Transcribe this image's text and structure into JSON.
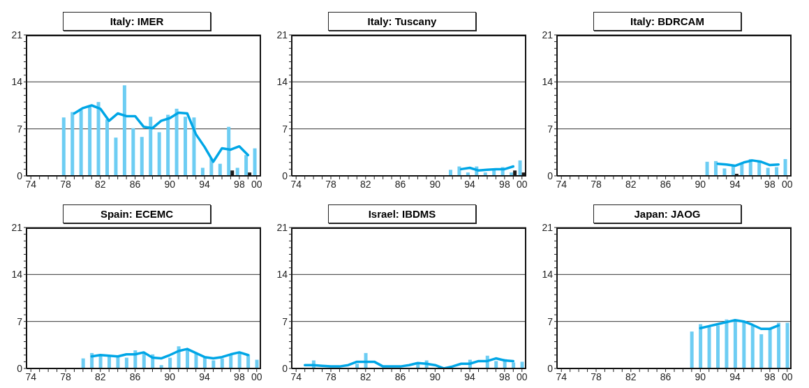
{
  "chart_data": [
    {
      "type": "bar",
      "title": "Italy: IMER",
      "categories": [
        "74",
        null,
        null,
        null,
        "78",
        null,
        null,
        null,
        "82",
        null,
        null,
        null,
        "86",
        null,
        null,
        null,
        "90",
        null,
        null,
        null,
        "94",
        null,
        null,
        null,
        "98",
        null,
        "00"
      ],
      "ylim": [
        0,
        21
      ],
      "yticks": [
        0,
        {
          "value": 1,
          "label": null
        },
        {
          "value": 2,
          "label": null
        },
        {
          "value": 3,
          "label": null
        },
        {
          "value": 4,
          "label": null
        },
        {
          "value": 5,
          "label": null
        },
        {
          "value": 6,
          "label": null
        },
        7,
        {
          "value": 8,
          "label": null
        },
        {
          "value": 9,
          "label": null
        },
        {
          "value": 10,
          "label": null
        },
        {
          "value": 11,
          "label": null
        },
        {
          "value": 12,
          "label": null
        },
        {
          "value": 13,
          "label": null
        },
        14,
        {
          "value": 15,
          "label": null
        },
        {
          "value": 16,
          "label": null
        },
        {
          "value": 17,
          "label": null
        },
        {
          "value": 18,
          "label": null
        },
        {
          "value": 19,
          "label": null
        },
        {
          "value": 20,
          "label": null
        },
        21
      ],
      "grid": "y",
      "series": [
        {
          "color": "#6dcdf3",
          "values": [
            null,
            null,
            null,
            null,
            8.7,
            9.5,
            9.8,
            10.3,
            11.0,
            8.4,
            5.7,
            13.5,
            7.1,
            5.8,
            8.8,
            6.5,
            9.1,
            10.0,
            8.8,
            8.7,
            1.2,
            2.6,
            1.8,
            7.3,
            1.2,
            3.1,
            4.1
          ]
        },
        {
          "color": "#1a1a1a",
          "values": [
            null,
            null,
            null,
            null,
            null,
            null,
            null,
            null,
            null,
            null,
            null,
            null,
            null,
            null,
            null,
            null,
            null,
            null,
            null,
            null,
            null,
            null,
            null,
            0.8,
            null,
            0.5,
            null
          ]
        },
        {
          "type": "line",
          "color": "#00a6e6",
          "values": [
            null,
            null,
            null,
            null,
            null,
            9.3,
            10.1,
            10.5,
            10.0,
            8.2,
            9.3,
            8.9,
            8.9,
            7.3,
            7.1,
            8.2,
            8.6,
            9.4,
            9.3,
            6.2,
            4.3,
            2.1,
            4.1,
            3.9,
            4.4,
            3.1,
            null
          ]
        }
      ]
    },
    {
      "type": "bar",
      "title": "Italy: Tuscany",
      "categories": [
        "74",
        null,
        null,
        null,
        "78",
        null,
        null,
        null,
        "82",
        null,
        null,
        null,
        "86",
        null,
        null,
        null,
        "90",
        null,
        null,
        null,
        "94",
        null,
        null,
        null,
        "98",
        null,
        "00"
      ],
      "ylim": [
        0,
        21
      ],
      "yticks": [
        0,
        {
          "value": 1,
          "label": null
        },
        {
          "value": 2,
          "label": null
        },
        {
          "value": 3,
          "label": null
        },
        {
          "value": 4,
          "label": null
        },
        {
          "value": 5,
          "label": null
        },
        {
          "value": 6,
          "label": null
        },
        7,
        {
          "value": 8,
          "label": null
        },
        {
          "value": 9,
          "label": null
        },
        {
          "value": 10,
          "label": null
        },
        {
          "value": 11,
          "label": null
        },
        {
          "value": 12,
          "label": null
        },
        {
          "value": 13,
          "label": null
        },
        14,
        {
          "value": 15,
          "label": null
        },
        {
          "value": 16,
          "label": null
        },
        {
          "value": 17,
          "label": null
        },
        {
          "value": 18,
          "label": null
        },
        {
          "value": 19,
          "label": null
        },
        {
          "value": 20,
          "label": null
        },
        21
      ],
      "grid": "y",
      "series": [
        {
          "color": "#6dcdf3",
          "values": [
            null,
            null,
            null,
            null,
            null,
            null,
            null,
            null,
            null,
            null,
            null,
            null,
            null,
            null,
            null,
            null,
            null,
            null,
            0.9,
            1.4,
            0.5,
            1.4,
            0.5,
            1.0,
            1.3,
            0.5,
            2.3
          ]
        },
        {
          "color": "#1a1a1a",
          "values": [
            null,
            null,
            null,
            null,
            null,
            null,
            null,
            null,
            null,
            null,
            null,
            null,
            null,
            null,
            null,
            null,
            null,
            null,
            null,
            null,
            null,
            null,
            null,
            null,
            null,
            0.8,
            0.5
          ]
        },
        {
          "type": "line",
          "color": "#00a6e6",
          "values": [
            null,
            null,
            null,
            null,
            null,
            null,
            null,
            null,
            null,
            null,
            null,
            null,
            null,
            null,
            null,
            null,
            null,
            null,
            null,
            1.0,
            1.2,
            0.8,
            0.9,
            1.0,
            1.0,
            1.4,
            null
          ]
        }
      ]
    },
    {
      "type": "bar",
      "title": "Italy: BDRCAM",
      "categories": [
        "74",
        null,
        null,
        null,
        "78",
        null,
        null,
        null,
        "82",
        null,
        null,
        null,
        "86",
        null,
        null,
        null,
        "90",
        null,
        null,
        null,
        "94",
        null,
        null,
        null,
        "98",
        null,
        "00"
      ],
      "ylim": [
        0,
        21
      ],
      "yticks": [
        0,
        {
          "value": 1,
          "label": null
        },
        {
          "value": 2,
          "label": null
        },
        {
          "value": 3,
          "label": null
        },
        {
          "value": 4,
          "label": null
        },
        {
          "value": 5,
          "label": null
        },
        {
          "value": 6,
          "label": null
        },
        7,
        {
          "value": 8,
          "label": null
        },
        {
          "value": 9,
          "label": null
        },
        {
          "value": 10,
          "label": null
        },
        {
          "value": 11,
          "label": null
        },
        {
          "value": 12,
          "label": null
        },
        {
          "value": 13,
          "label": null
        },
        14,
        {
          "value": 15,
          "label": null
        },
        {
          "value": 16,
          "label": null
        },
        {
          "value": 17,
          "label": null
        },
        {
          "value": 18,
          "label": null
        },
        {
          "value": 19,
          "label": null
        },
        {
          "value": 20,
          "label": null
        },
        21
      ],
      "grid": "y",
      "series": [
        {
          "color": "#6dcdf3",
          "values": [
            null,
            null,
            null,
            null,
            null,
            null,
            null,
            null,
            null,
            null,
            null,
            null,
            null,
            null,
            null,
            null,
            null,
            2.1,
            2.2,
            1.1,
            1.5,
            1.8,
            2.5,
            2.2,
            1.2,
            1.3,
            2.5
          ]
        },
        {
          "color": "#1a1a1a",
          "values": [
            null,
            null,
            null,
            null,
            null,
            null,
            null,
            null,
            null,
            null,
            null,
            null,
            null,
            null,
            null,
            null,
            null,
            null,
            null,
            null,
            0.3,
            null,
            null,
            null,
            null,
            null,
            null
          ]
        },
        {
          "type": "line",
          "color": "#00a6e6",
          "values": [
            null,
            null,
            null,
            null,
            null,
            null,
            null,
            null,
            null,
            null,
            null,
            null,
            null,
            null,
            null,
            null,
            null,
            null,
            1.8,
            1.7,
            1.5,
            2.0,
            2.3,
            2.1,
            1.6,
            1.7,
            null
          ]
        }
      ]
    },
    {
      "type": "bar",
      "title": "Spain: ECEMC",
      "categories": [
        "74",
        null,
        null,
        null,
        "78",
        null,
        null,
        null,
        "82",
        null,
        null,
        null,
        "86",
        null,
        null,
        null,
        "90",
        null,
        null,
        null,
        "94",
        null,
        null,
        null,
        "98",
        null,
        "00"
      ],
      "ylim": [
        0,
        21
      ],
      "yticks": [
        0,
        {
          "value": 1,
          "label": null
        },
        {
          "value": 2,
          "label": null
        },
        {
          "value": 3,
          "label": null
        },
        {
          "value": 4,
          "label": null
        },
        {
          "value": 5,
          "label": null
        },
        {
          "value": 6,
          "label": null
        },
        7,
        {
          "value": 8,
          "label": null
        },
        {
          "value": 9,
          "label": null
        },
        {
          "value": 10,
          "label": null
        },
        {
          "value": 11,
          "label": null
        },
        {
          "value": 12,
          "label": null
        },
        {
          "value": 13,
          "label": null
        },
        14,
        {
          "value": 15,
          "label": null
        },
        {
          "value": 16,
          "label": null
        },
        {
          "value": 17,
          "label": null
        },
        {
          "value": 18,
          "label": null
        },
        {
          "value": 19,
          "label": null
        },
        {
          "value": 20,
          "label": null
        },
        21
      ],
      "grid": "y",
      "series": [
        {
          "color": "#6dcdf3",
          "values": [
            null,
            null,
            null,
            null,
            null,
            null,
            1.5,
            2.3,
            2.0,
            1.9,
            1.9,
            1.6,
            2.7,
            2.3,
            2.1,
            0.5,
            1.6,
            3.3,
            2.9,
            2.2,
            1.6,
            1.2,
            1.5,
            2.0,
            2.5,
            2.1,
            1.3
          ]
        },
        {
          "type": "line",
          "color": "#00a6e6",
          "values": [
            null,
            null,
            null,
            null,
            null,
            null,
            null,
            1.8,
            2.0,
            1.9,
            1.8,
            2.1,
            2.1,
            2.4,
            1.6,
            1.5,
            2.0,
            2.6,
            2.9,
            2.3,
            1.7,
            1.5,
            1.7,
            2.1,
            2.4,
            2.0,
            null
          ]
        }
      ]
    },
    {
      "type": "bar",
      "title": "Israel: IBDMS",
      "categories": [
        "74",
        null,
        null,
        null,
        "78",
        null,
        null,
        null,
        "82",
        null,
        null,
        null,
        "86",
        null,
        null,
        null,
        "90",
        null,
        null,
        null,
        "94",
        null,
        null,
        null,
        "98",
        null,
        "00"
      ],
      "ylim": [
        0,
        21
      ],
      "yticks": [
        0,
        {
          "value": 1,
          "label": null
        },
        {
          "value": 2,
          "label": null
        },
        {
          "value": 3,
          "label": null
        },
        {
          "value": 4,
          "label": null
        },
        {
          "value": 5,
          "label": null
        },
        {
          "value": 6,
          "label": null
        },
        7,
        {
          "value": 8,
          "label": null
        },
        {
          "value": 9,
          "label": null
        },
        {
          "value": 10,
          "label": null
        },
        {
          "value": 11,
          "label": null
        },
        {
          "value": 12,
          "label": null
        },
        {
          "value": 13,
          "label": null
        },
        14,
        {
          "value": 15,
          "label": null
        },
        {
          "value": 16,
          "label": null
        },
        {
          "value": 17,
          "label": null
        },
        {
          "value": 18,
          "label": null
        },
        {
          "value": 19,
          "label": null
        },
        {
          "value": 20,
          "label": null
        },
        21
      ],
      "grid": "y",
      "series": [
        {
          "color": "#6dcdf3",
          "values": [
            null,
            null,
            1.2,
            null,
            null,
            null,
            null,
            0.7,
            2.3,
            null,
            null,
            null,
            null,
            null,
            0.7,
            1.2,
            null,
            null,
            null,
            null,
            1.3,
            null,
            1.9,
            1.1,
            1.4,
            0.9,
            1.0
          ]
        },
        {
          "type": "line",
          "color": "#00a6e6",
          "values": [
            null,
            0.5,
            0.5,
            0.4,
            0.3,
            0.3,
            0.5,
            1.0,
            1.0,
            1.0,
            0.3,
            0.3,
            0.3,
            0.5,
            0.8,
            0.7,
            0.5,
            0.0,
            0.3,
            0.7,
            0.7,
            1.1,
            1.1,
            1.5,
            1.2,
            1.1,
            null
          ]
        }
      ]
    },
    {
      "type": "bar",
      "title": "Japan: JAOG",
      "categories": [
        "74",
        null,
        null,
        null,
        "78",
        null,
        null,
        null,
        "82",
        null,
        null,
        null,
        "86",
        null,
        null,
        null,
        "90",
        null,
        null,
        null,
        "94",
        null,
        null,
        null,
        "98",
        null,
        "00"
      ],
      "ylim": [
        0,
        21
      ],
      "yticks": [
        0,
        {
          "value": 1,
          "label": null
        },
        {
          "value": 2,
          "label": null
        },
        {
          "value": 3,
          "label": null
        },
        {
          "value": 4,
          "label": null
        },
        {
          "value": 5,
          "label": null
        },
        {
          "value": 6,
          "label": null
        },
        7,
        {
          "value": 8,
          "label": null
        },
        {
          "value": 9,
          "label": null
        },
        {
          "value": 10,
          "label": null
        },
        {
          "value": 11,
          "label": null
        },
        {
          "value": 12,
          "label": null
        },
        {
          "value": 13,
          "label": null
        },
        14,
        {
          "value": 15,
          "label": null
        },
        {
          "value": 16,
          "label": null
        },
        {
          "value": 17,
          "label": null
        },
        {
          "value": 18,
          "label": null
        },
        {
          "value": 19,
          "label": null
        },
        {
          "value": 20,
          "label": null
        },
        21
      ],
      "grid": "y",
      "series": [
        {
          "color": "#6dcdf3",
          "values": [
            null,
            null,
            null,
            null,
            null,
            null,
            null,
            null,
            null,
            null,
            null,
            null,
            null,
            null,
            null,
            5.5,
            6.6,
            6.2,
            6.4,
            7.3,
            7.0,
            6.9,
            6.4,
            5.1,
            6.0,
            6.8,
            6.8
          ]
        },
        {
          "type": "line",
          "color": "#00a6e6",
          "values": [
            null,
            null,
            null,
            null,
            null,
            null,
            null,
            null,
            null,
            null,
            null,
            null,
            null,
            null,
            null,
            null,
            6.0,
            6.3,
            6.6,
            6.9,
            7.2,
            7.0,
            6.5,
            5.9,
            5.9,
            6.4,
            null
          ]
        }
      ]
    }
  ]
}
